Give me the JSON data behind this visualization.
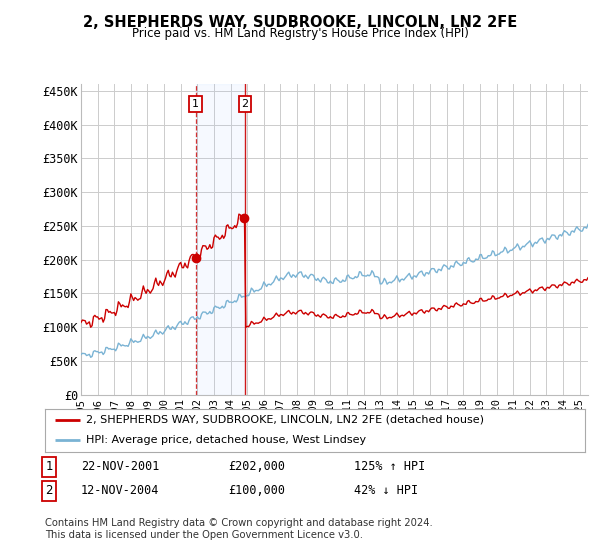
{
  "title": "2, SHEPHERDS WAY, SUDBROOKE, LINCOLN, LN2 2FE",
  "subtitle": "Price paid vs. HM Land Registry's House Price Index (HPI)",
  "yticks": [
    0,
    50000,
    100000,
    150000,
    200000,
    250000,
    300000,
    350000,
    400000,
    450000
  ],
  "ytick_labels": [
    "£0",
    "£50K",
    "£100K",
    "£150K",
    "£200K",
    "£250K",
    "£300K",
    "£350K",
    "£400K",
    "£450K"
  ],
  "hpi_color": "#7ab3d4",
  "price_color": "#cc0000",
  "sale1_t": 2001.89,
  "sale1_price": 202000,
  "sale2_t": 2004.87,
  "sale2_price": 100000,
  "legend_line1": "2, SHEPHERDS WAY, SUDBROOKE, LINCOLN, LN2 2FE (detached house)",
  "legend_line2": "HPI: Average price, detached house, West Lindsey",
  "table_row1_num": "1",
  "table_row1_date": "22-NOV-2001",
  "table_row1_price": "£202,000",
  "table_row1_hpi": "125% ↑ HPI",
  "table_row2_num": "2",
  "table_row2_date": "12-NOV-2004",
  "table_row2_price": "£100,000",
  "table_row2_hpi": "42% ↓ HPI",
  "footnote": "Contains HM Land Registry data © Crown copyright and database right 2024.\nThis data is licensed under the Open Government Licence v3.0.",
  "bg_color": "#ffffff",
  "grid_color": "#cccccc",
  "xmin": 1995,
  "xmax": 2025.5,
  "ymin": 0,
  "ymax": 460000
}
